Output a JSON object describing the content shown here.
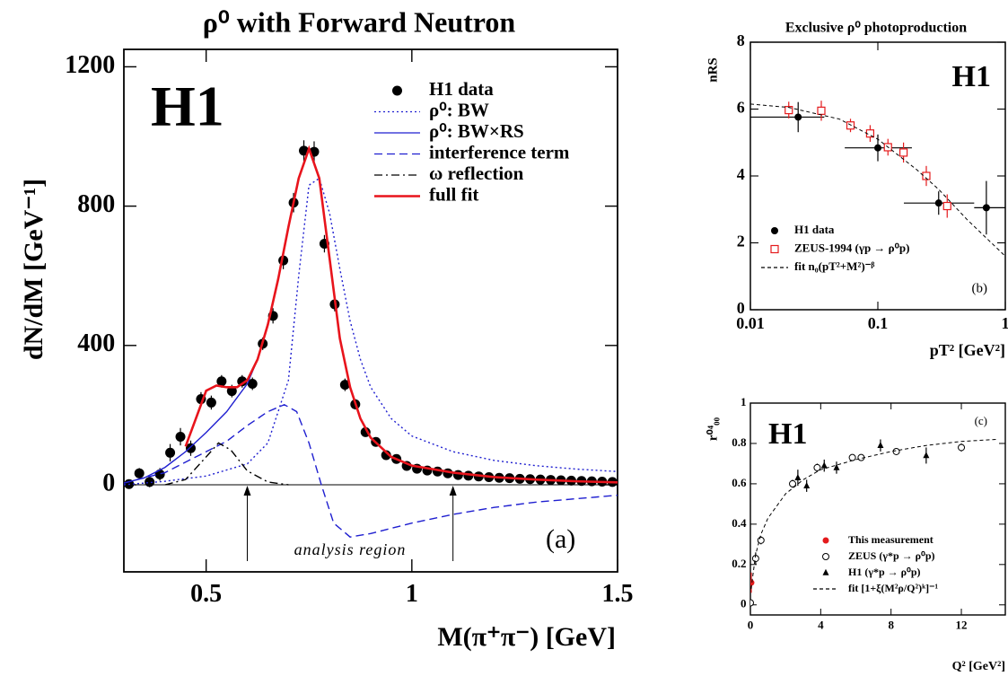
{
  "chart_data": [
    {
      "type": "scatter",
      "title": "ρ⁰ with Forward Neutron",
      "xlabel": "M(π⁺π⁻) [GeV]",
      "ylabel": "dN/dM [GeV⁻¹]",
      "annotations": [
        "H1",
        "(a)",
        "analysis region"
      ],
      "arrows": [
        0.6,
        1.1
      ],
      "zero_line": true,
      "xlim": [
        0.3,
        1.5
      ],
      "ylim": [
        -250,
        1250
      ],
      "xticks": [
        0.5,
        1,
        1.5
      ],
      "yticks": [
        0,
        400,
        800,
        1200
      ],
      "legend": "upper right",
      "series": [
        {
          "name": "H1 data",
          "color": "#000000",
          "marker": "circle",
          "line": null,
          "x": [
            0.3125,
            0.3375,
            0.3625,
            0.3875,
            0.4125,
            0.4375,
            0.4625,
            0.4875,
            0.5125,
            0.5375,
            0.5625,
            0.5875,
            0.6125,
            0.6375,
            0.6625,
            0.6875,
            0.7125,
            0.7375,
            0.7625,
            0.7875,
            0.8125,
            0.8375,
            0.8625,
            0.8875,
            0.9125,
            0.9375,
            0.9625,
            0.9875,
            1.0125,
            1.0375,
            1.0625,
            1.0875,
            1.1125,
            1.1375,
            1.1625,
            1.1875,
            1.2125,
            1.2375,
            1.2625,
            1.2875,
            1.3125,
            1.3375,
            1.3625,
            1.3875,
            1.4125,
            1.4375,
            1.4625,
            1.4875
          ],
          "values": [
            2,
            33,
            8,
            30,
            92,
            138,
            105,
            246,
            236,
            297,
            269,
            297,
            290,
            405,
            485,
            644,
            810,
            959,
            956,
            692,
            518,
            287,
            231,
            151,
            123,
            85,
            74,
            54,
            46,
            41,
            38,
            33,
            28,
            26,
            24,
            22,
            20,
            19,
            17,
            16,
            15,
            14,
            13,
            12,
            11,
            10,
            9,
            8
          ],
          "errors": [
            12,
            15,
            15,
            18,
            25,
            25,
            22,
            20,
            20,
            18,
            18,
            18,
            18,
            18,
            22,
            25,
            28,
            30,
            30,
            25,
            20,
            18,
            15,
            12,
            10,
            8,
            8,
            7,
            6,
            6,
            6,
            5,
            5,
            5,
            5,
            5,
            5,
            5,
            5,
            5,
            5,
            5,
            5,
            5,
            5,
            5,
            5,
            5
          ]
        },
        {
          "name": "ρ⁰: BW",
          "color": "#1f1fd0",
          "marker": null,
          "line": "dotted",
          "x": [
            0.3,
            0.4,
            0.5,
            0.6,
            0.65,
            0.7,
            0.725,
            0.75,
            0.775,
            0.8,
            0.825,
            0.85,
            0.875,
            0.9,
            0.95,
            1.0,
            1.1,
            1.2,
            1.3,
            1.4,
            1.5
          ],
          "values": [
            0,
            10,
            25,
            60,
            120,
            300,
            600,
            860,
            880,
            780,
            620,
            470,
            360,
            280,
            190,
            140,
            95,
            70,
            55,
            45,
            38
          ]
        },
        {
          "name": "ρ⁰: BW×RS",
          "color": "#1f1fd0",
          "marker": null,
          "line": "solid",
          "x": [
            0.3,
            0.35,
            0.4,
            0.45,
            0.5,
            0.55,
            0.6,
            0.625,
            0.65,
            0.675,
            0.7,
            0.725,
            0.75,
            0.775,
            0.8,
            0.825,
            0.85,
            0.875,
            0.9,
            0.95,
            1.0,
            1.1,
            1.2,
            1.3,
            1.4,
            1.5
          ],
          "values": [
            5,
            20,
            50,
            95,
            150,
            210,
            290,
            360,
            460,
            590,
            740,
            880,
            965,
            880,
            650,
            420,
            280,
            190,
            135,
            80,
            55,
            35,
            22,
            15,
            10,
            7
          ]
        },
        {
          "name": "interference term",
          "color": "#1f1fd0",
          "marker": null,
          "line": "dashed",
          "x": [
            0.3,
            0.4,
            0.5,
            0.55,
            0.6,
            0.65,
            0.69,
            0.72,
            0.75,
            0.78,
            0.81,
            0.85,
            0.9,
            1.0,
            1.1,
            1.2,
            1.3,
            1.4,
            1.5
          ],
          "values": [
            5,
            35,
            95,
            125,
            170,
            210,
            230,
            210,
            120,
            0,
            -110,
            -150,
            -140,
            -110,
            -85,
            -65,
            -50,
            -40,
            -30
          ]
        },
        {
          "name": "ω reflection",
          "color": "#000000",
          "marker": null,
          "line": "dashdot",
          "x": [
            0.4,
            0.45,
            0.5,
            0.53,
            0.56,
            0.6,
            0.65,
            0.7
          ],
          "values": [
            0,
            15,
            80,
            120,
            100,
            40,
            8,
            0
          ]
        },
        {
          "name": "full fit",
          "color": "#e8141c",
          "marker": null,
          "line": "solid-thick",
          "x": [
            0.45,
            0.475,
            0.5,
            0.525,
            0.55,
            0.575,
            0.6,
            0.625,
            0.65,
            0.675,
            0.7,
            0.725,
            0.75,
            0.775,
            0.8,
            0.825,
            0.85,
            0.875,
            0.9,
            0.95,
            1.0,
            1.1,
            1.2,
            1.3,
            1.4,
            1.5
          ],
          "values": [
            110,
            190,
            270,
            285,
            280,
            280,
            300,
            360,
            460,
            590,
            740,
            880,
            965,
            880,
            650,
            420,
            280,
            190,
            135,
            80,
            55,
            35,
            22,
            15,
            10,
            7
          ]
        }
      ]
    },
    {
      "type": "scatter",
      "title": "Exclusive ρ⁰ photoproduction",
      "xlabel": "pT² [GeV²]",
      "ylabel": "nRS",
      "annotations": [
        "H1",
        "(b)"
      ],
      "xscale": "log",
      "xlim": [
        0.01,
        1
      ],
      "ylim": [
        0,
        8
      ],
      "xticks": [
        0.01,
        0.1,
        1
      ],
      "yticks": [
        0,
        2,
        4,
        6,
        8
      ],
      "legend": "lower left",
      "series": [
        {
          "name": "H1 data",
          "color": "#000000",
          "marker": "circle",
          "line": null,
          "x": [
            0.0237,
            0.1,
            0.3,
            0.71
          ],
          "values": [
            5.76,
            4.84,
            3.19,
            3.05
          ],
          "errors": [
            0.45,
            0.4,
            0.35,
            0.8
          ],
          "x_low": [
            0.01,
            0.055,
            0.16,
            0.57
          ],
          "x_high": [
            0.038,
            0.185,
            0.57,
            1
          ]
        },
        {
          "name": "ZEUS-1994 (γp → ρ⁰p)",
          "color": "#e41a1c",
          "marker": "open-square",
          "line": null,
          "x": [
            0.02,
            0.036,
            0.061,
            0.087,
            0.12,
            0.159,
            0.24,
            0.35
          ],
          "values": [
            5.97,
            5.95,
            5.51,
            5.27,
            4.86,
            4.7,
            4.0,
            3.1
          ],
          "errors": [
            0.25,
            0.3,
            0.2,
            0.25,
            0.25,
            0.3,
            0.3,
            0.35
          ]
        },
        {
          "name": "fit n₀(pT²+M²)⁻ᵝ",
          "color": "#000000",
          "marker": null,
          "line": "fine-dashed",
          "x": [
            0.01,
            0.02,
            0.05,
            0.1,
            0.2,
            0.3,
            0.5,
            1
          ],
          "values": [
            6.15,
            6.05,
            5.7,
            5.1,
            4.2,
            3.6,
            2.7,
            1.6
          ]
        }
      ]
    },
    {
      "type": "scatter",
      "xlabel": "Q² [GeV²]",
      "ylabel": "r⁰⁴₀₀",
      "annotations": [
        "H1",
        "(c)"
      ],
      "xlim": [
        0,
        14.5
      ],
      "ylim": [
        -0.05,
        1
      ],
      "xticks": [
        0,
        4,
        8,
        12
      ],
      "yticks": [
        0,
        0.2,
        0.4,
        0.6,
        0.8,
        1
      ],
      "legend": "lower right",
      "series": [
        {
          "name": "This measurement",
          "color": "#e41a1c",
          "marker": "circle",
          "line": null,
          "x": [
            0.05
          ],
          "values": [
            0.11
          ],
          "errors": [
            0.05
          ]
        },
        {
          "name": "ZEUS (γ*p → ρ⁰p)",
          "color": "#000000",
          "marker": "open-circle",
          "line": null,
          "x": [
            0,
            0.3,
            0.6,
            2.4,
            3.8,
            5.8,
            6.3,
            8.3,
            12
          ],
          "values": [
            0.01,
            0.23,
            0.32,
            0.6,
            0.68,
            0.73,
            0.73,
            0.76,
            0.78
          ],
          "errors": [
            0.02,
            0.03,
            0.02,
            0.02,
            0.02,
            0.01,
            0.01,
            0.01,
            0.02
          ]
        },
        {
          "name": "H1 (γ*p → ρ⁰p)",
          "color": "#000000",
          "marker": "triangle",
          "line": null,
          "x": [
            2.7,
            3.2,
            4.2,
            4.9,
            7.4,
            10
          ],
          "values": [
            0.63,
            0.59,
            0.69,
            0.68,
            0.79,
            0.74
          ],
          "errors": [
            0.04,
            0.03,
            0.03,
            0.03,
            0.03,
            0.04
          ]
        },
        {
          "name": "fit [1+ξ(M²ρ/Q²)ᵏ]⁻¹",
          "color": "#000000",
          "marker": null,
          "line": "fine-dashed",
          "x": [
            0.05,
            0.1,
            0.3,
            0.6,
            1,
            2,
            3,
            4,
            6,
            8,
            10,
            12,
            14
          ],
          "values": [
            0.08,
            0.12,
            0.25,
            0.35,
            0.43,
            0.55,
            0.62,
            0.67,
            0.72,
            0.76,
            0.79,
            0.81,
            0.82
          ]
        }
      ]
    }
  ]
}
